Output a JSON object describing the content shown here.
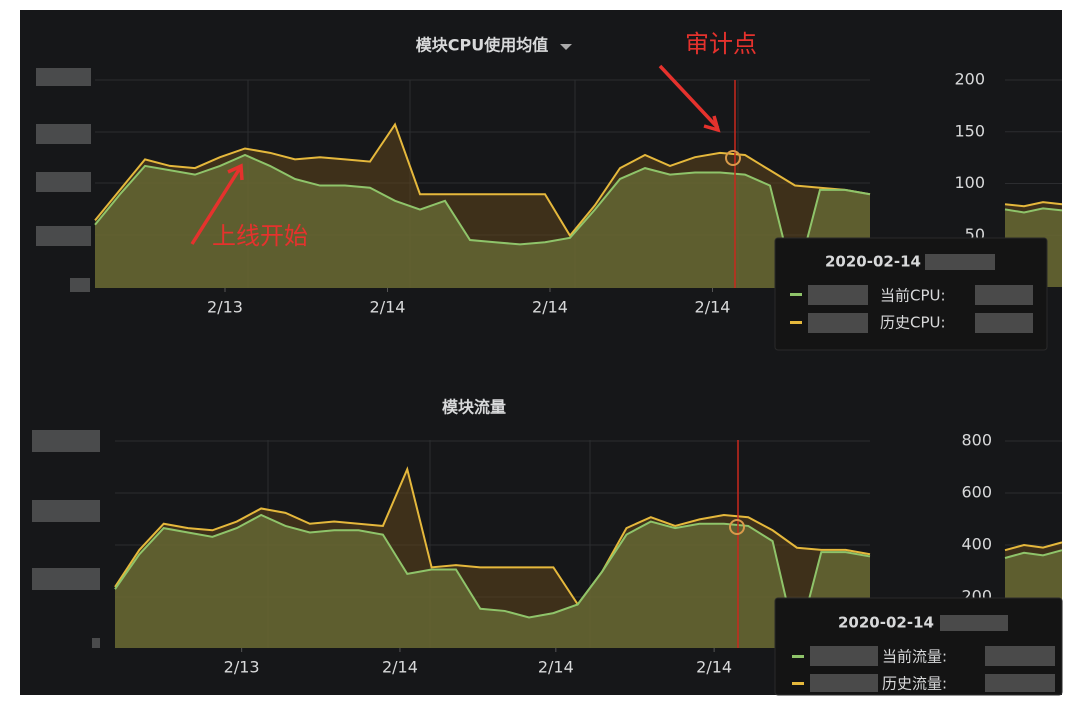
{
  "chart_data": [
    {
      "type": "line",
      "title": "模块CPU使用均值",
      "x": [
        0,
        1,
        2,
        3,
        4,
        5,
        6,
        7,
        8,
        9,
        10,
        11,
        12,
        13,
        14,
        15,
        16,
        17,
        18,
        19,
        20,
        21,
        22,
        23,
        24,
        25,
        26,
        27,
        28,
        29,
        30,
        31
      ],
      "xlim": [
        0,
        31
      ],
      "ylim": [
        0,
        100
      ],
      "xticks": [
        {
          "value": 5.2,
          "label": "2/13"
        },
        {
          "value": 11.7,
          "label": "2/14"
        },
        {
          "value": 18.2,
          "label": "2/14"
        },
        {
          "value": 24.7,
          "label": "2/14"
        }
      ],
      "series": [
        {
          "name": "历史CPU:",
          "color": "#e5b83c",
          "values": [
            31,
            45,
            59,
            56,
            55,
            60,
            64,
            62,
            59,
            60,
            59,
            58,
            75,
            43,
            43,
            43,
            43,
            43,
            43,
            24,
            38,
            55,
            61,
            56,
            60,
            62,
            61,
            54,
            47,
            46,
            45,
            43
          ]
        },
        {
          "name": "当前CPU:",
          "color": "#8fc46a",
          "values": [
            29,
            43,
            56,
            54,
            52,
            56,
            61,
            56,
            50,
            47,
            47,
            46,
            40,
            36,
            40,
            22,
            21,
            20,
            21,
            23,
            36,
            50,
            55,
            52,
            53,
            53,
            52,
            47,
            1,
            45,
            45,
            43
          ]
        }
      ],
      "annotations": [
        "上线开始",
        "审计点"
      ],
      "tooltip_date": "2020-02-14"
    },
    {
      "type": "line",
      "ylim": [
        0,
        200
      ],
      "yticks": [
        200,
        150,
        100,
        50
      ],
      "x": [
        0,
        1,
        2,
        3
      ],
      "xlim": [
        0,
        3
      ],
      "series": [
        {
          "color": "#e5b83c",
          "values": [
            80,
            78,
            82,
            80
          ]
        },
        {
          "color": "#8fc46a",
          "values": [
            75,
            72,
            76,
            74
          ]
        }
      ]
    },
    {
      "type": "line",
      "title": "模块流量",
      "x": [
        0,
        1,
        2,
        3,
        4,
        5,
        6,
        7,
        8,
        9,
        10,
        11,
        12,
        13,
        14,
        15,
        16,
        17,
        18,
        19,
        20,
        21,
        22,
        23,
        24,
        25,
        26,
        27,
        28,
        29,
        30,
        31
      ],
      "xlim": [
        0,
        31
      ],
      "ylim": [
        0,
        100
      ],
      "xticks": [
        {
          "value": 5.2,
          "label": "2/13"
        },
        {
          "value": 11.7,
          "label": "2/14"
        },
        {
          "value": 18.1,
          "label": "2/14"
        },
        {
          "value": 24.6,
          "label": "2/14"
        }
      ],
      "series": [
        {
          "name": "历史流量:",
          "color": "#e5b83c",
          "values": [
            28,
            45,
            57,
            55,
            54,
            58,
            64,
            62,
            57,
            58,
            57,
            56,
            82,
            37,
            38,
            37,
            37,
            37,
            37,
            20,
            35,
            55,
            60,
            56,
            59,
            61,
            60,
            54,
            46,
            45,
            45,
            43
          ]
        },
        {
          "name": "当前流量:",
          "color": "#8fc46a",
          "values": [
            27,
            43,
            55,
            53,
            51,
            55,
            61,
            56,
            53,
            54,
            54,
            52,
            34,
            36,
            36,
            18,
            17,
            14,
            16,
            20,
            35,
            52,
            58,
            55,
            57,
            57,
            56,
            49,
            1,
            44,
            44,
            42
          ]
        }
      ],
      "tooltip_date": "2020-02-14"
    },
    {
      "type": "line",
      "ylim": [
        0,
        800
      ],
      "yticks": [
        800,
        600,
        400,
        200
      ],
      "x": [
        0,
        1,
        2,
        3
      ],
      "xlim": [
        0,
        3
      ],
      "series": [
        {
          "color": "#e5b83c",
          "values": [
            380,
            400,
            390,
            410
          ]
        },
        {
          "color": "#8fc46a",
          "values": [
            350,
            370,
            360,
            380
          ]
        }
      ]
    }
  ]
}
